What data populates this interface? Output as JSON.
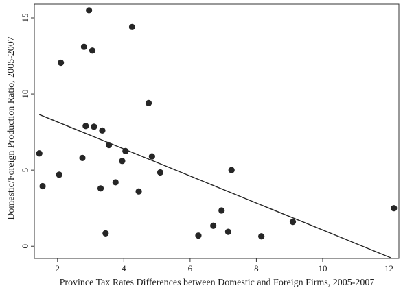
{
  "chart_data": {
    "type": "scatter",
    "title": "",
    "xlabel": "Province Tax Rates Differences between Domestic and Foreign Firms, 2005-2007",
    "ylabel": "Domestic/Foreign Production Ratio, 2005-2007",
    "xlim": [
      1.3,
      12.3
    ],
    "ylim": [
      -0.8,
      15.9
    ],
    "xticks": [
      2,
      4,
      6,
      8,
      10,
      12
    ],
    "yticks": [
      0,
      5,
      10,
      15
    ],
    "grid": false,
    "legend": "none",
    "colors": {
      "point": "#262626",
      "line": "#262626",
      "axis": "#333333"
    },
    "points": [
      {
        "x": 1.45,
        "y": 6.1
      },
      {
        "x": 1.55,
        "y": 3.95
      },
      {
        "x": 2.05,
        "y": 4.7
      },
      {
        "x": 2.1,
        "y": 12.05
      },
      {
        "x": 2.75,
        "y": 5.8
      },
      {
        "x": 2.8,
        "y": 13.1
      },
      {
        "x": 2.85,
        "y": 7.9
      },
      {
        "x": 2.95,
        "y": 15.5
      },
      {
        "x": 3.05,
        "y": 12.85
      },
      {
        "x": 3.1,
        "y": 7.85
      },
      {
        "x": 3.3,
        "y": 3.8
      },
      {
        "x": 3.35,
        "y": 7.6
      },
      {
        "x": 3.45,
        "y": 0.85
      },
      {
        "x": 3.55,
        "y": 6.65
      },
      {
        "x": 3.75,
        "y": 4.2
      },
      {
        "x": 3.95,
        "y": 5.6
      },
      {
        "x": 4.05,
        "y": 6.25
      },
      {
        "x": 4.25,
        "y": 14.4
      },
      {
        "x": 4.45,
        "y": 3.6
      },
      {
        "x": 4.75,
        "y": 9.4
      },
      {
        "x": 4.85,
        "y": 5.9
      },
      {
        "x": 5.1,
        "y": 4.85
      },
      {
        "x": 6.25,
        "y": 0.7
      },
      {
        "x": 6.7,
        "y": 1.35
      },
      {
        "x": 6.95,
        "y": 2.35
      },
      {
        "x": 7.15,
        "y": 0.95
      },
      {
        "x": 7.25,
        "y": 5.0
      },
      {
        "x": 8.15,
        "y": 0.65
      },
      {
        "x": 9.1,
        "y": 1.6
      },
      {
        "x": 12.15,
        "y": 2.5
      }
    ],
    "fit_line": {
      "x": [
        1.45,
        12.05
      ],
      "y": [
        8.65,
        -0.75
      ]
    }
  }
}
